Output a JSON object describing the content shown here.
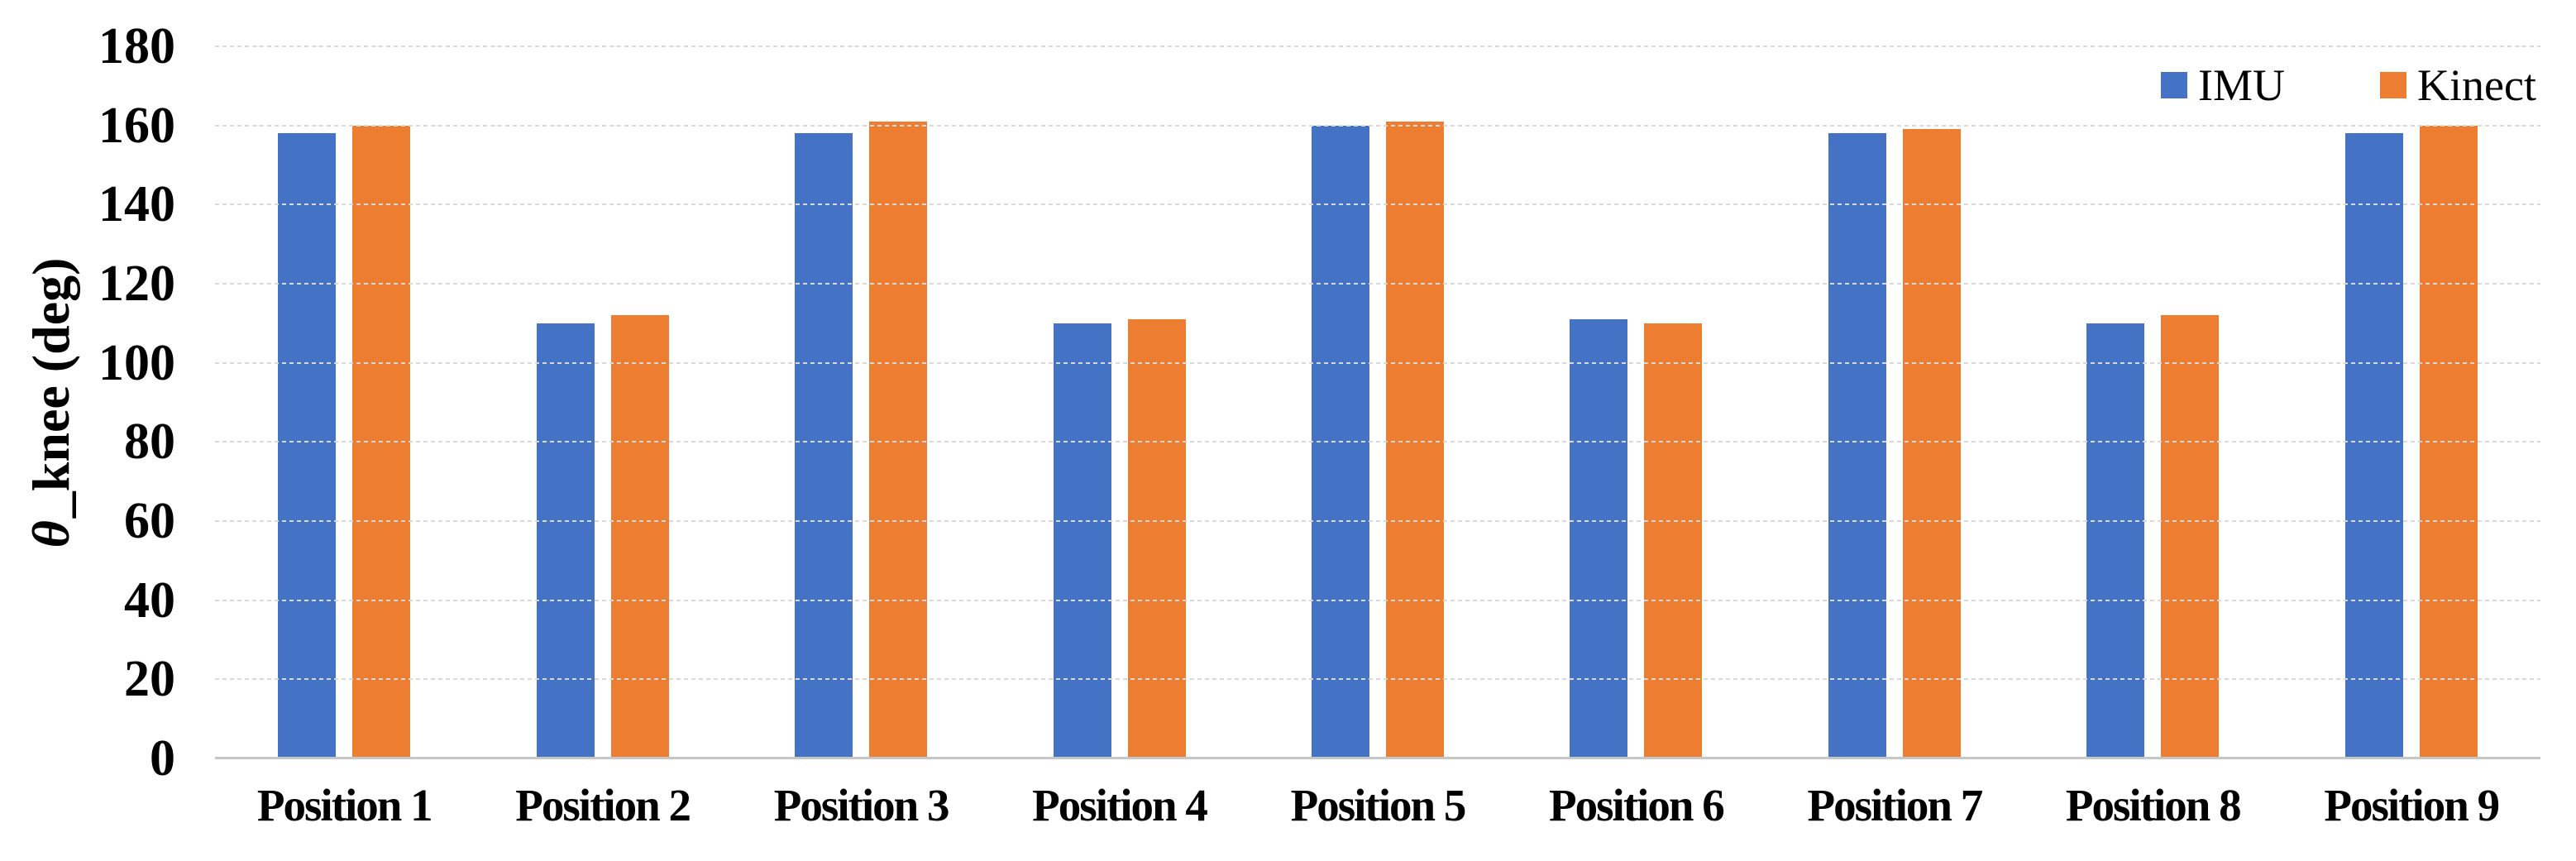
{
  "chart_data": {
    "type": "bar",
    "title": "",
    "categories": [
      "Position 1",
      "Position 2",
      "Position 3",
      "Position 4",
      "Position 5",
      "Position 6",
      "Position 7",
      "Position 8",
      "Position 9"
    ],
    "series": [
      {
        "name": "IMU",
        "color": "#4472C4",
        "values": [
          158,
          110,
          158,
          110,
          160,
          111,
          158,
          110,
          158
        ]
      },
      {
        "name": "Kinect",
        "color": "#ED7D31",
        "values": [
          160,
          112,
          161,
          111,
          161,
          110,
          159,
          112,
          160
        ]
      }
    ],
    "xlabel": "",
    "ylabel": "θ_knee (deg)",
    "ylabel_parts": {
      "theta": "θ",
      "rest": "_knee (deg)"
    },
    "ylim": [
      0,
      180
    ],
    "yticks": [
      0,
      20,
      40,
      60,
      80,
      100,
      120,
      140,
      160,
      180
    ],
    "legend_position": "top-right",
    "grid": {
      "horizontal": true,
      "style": "dashed",
      "color": "#D9D9D9"
    },
    "axis_line_color": "#C6C6C6",
    "background": "#FFFFFF"
  }
}
